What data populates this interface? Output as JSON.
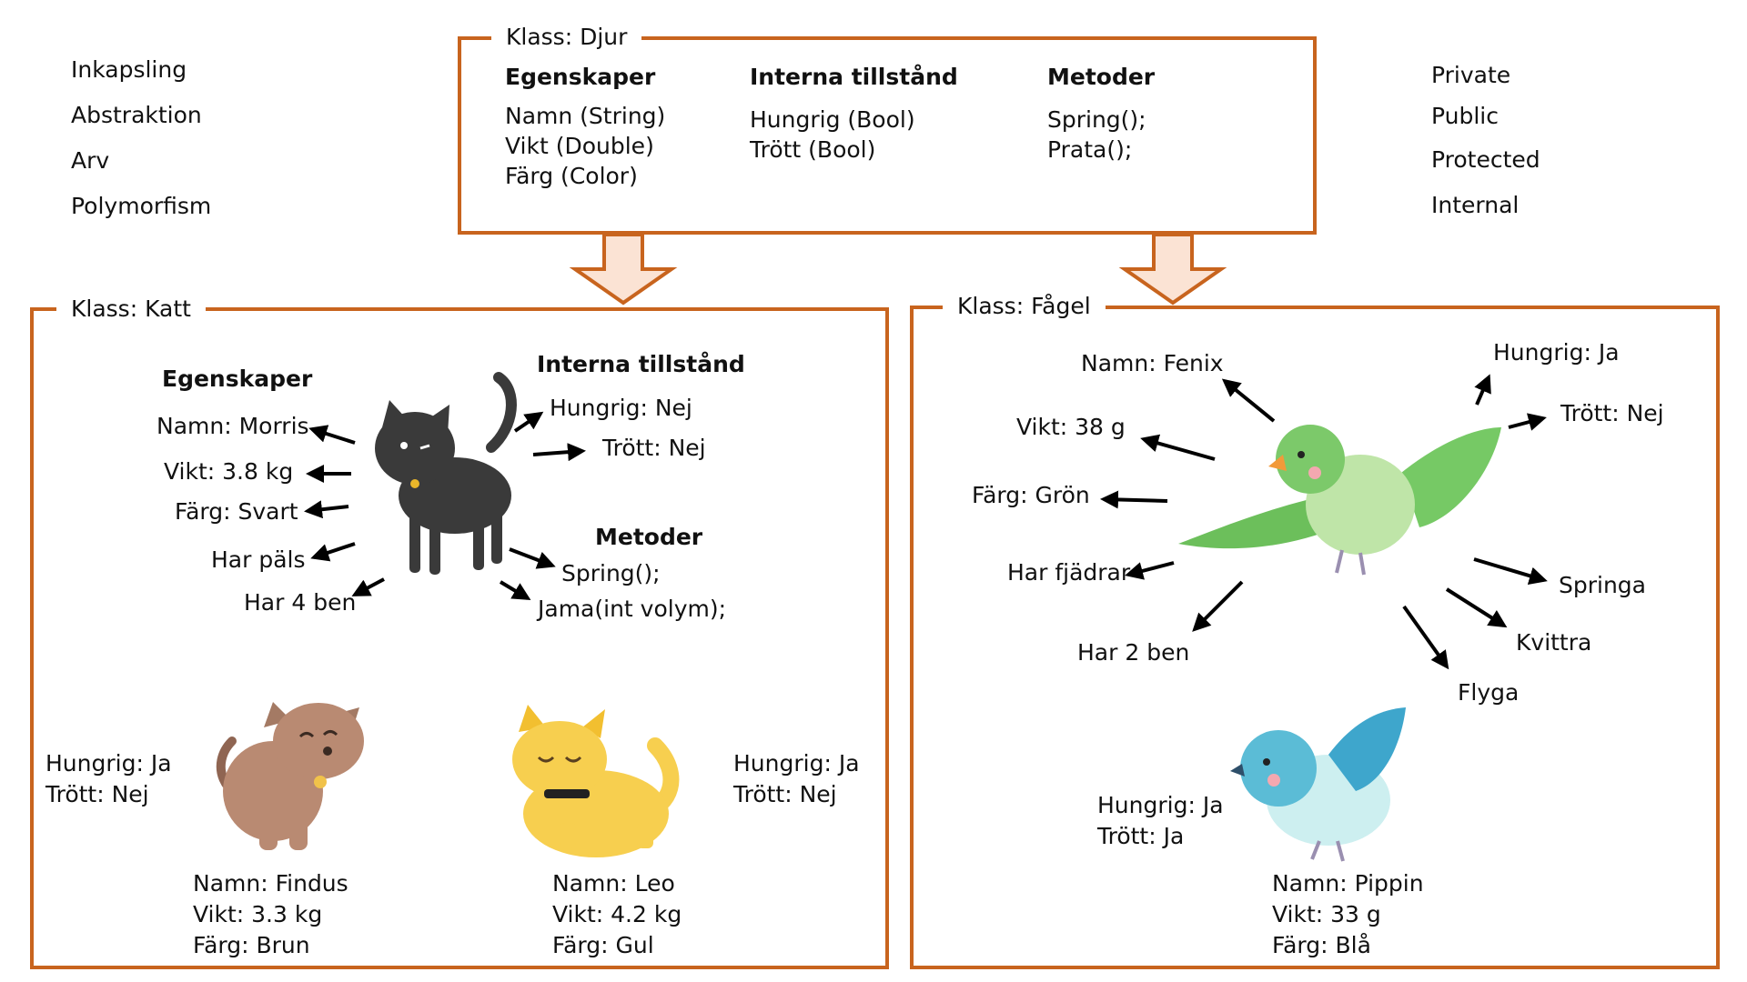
{
  "concepts": [
    "Inkapsling",
    "Abstraktion",
    "Arv",
    "Polymorfism"
  ],
  "access_modifiers": [
    "Private",
    "Public",
    "Protected",
    "Internal"
  ],
  "base_class": {
    "label": "Klass: Djur",
    "properties_heading": "Egenskaper",
    "properties": [
      "Namn (String)",
      "Vikt (Double)",
      "Färg (Color)"
    ],
    "state_heading": "Interna tillstånd",
    "states": [
      "Hungrig (Bool)",
      "Trött (Bool)"
    ],
    "methods_heading": "Metoder",
    "methods": [
      "Spring();",
      "Prata();"
    ]
  },
  "cat_class": {
    "label": "Klass: Katt",
    "properties_heading": "Egenskaper",
    "properties": [
      "Namn: Morris",
      "Vikt: 3.8 kg",
      "Färg: Svart",
      "Har päls",
      "Har 4 ben"
    ],
    "state_heading": "Interna tillstånd",
    "states": [
      "Hungrig: Nej",
      "Trött: Nej"
    ],
    "methods_heading": "Metoder",
    "methods": [
      "Spring();",
      "Jama(int volym);"
    ],
    "instances": [
      {
        "state": "Hungrig: Ja\nTrött: Nej",
        "info": "Namn: Findus\nVikt: 3.3 kg\nFärg: Brun"
      },
      {
        "state": "Hungrig: Ja\nTrött: Nej",
        "info": "Namn: Leo\nVikt: 4.2 kg\nFärg: Gul"
      }
    ]
  },
  "bird_class": {
    "label": "Klass: Fågel",
    "labels": [
      "Namn: Fenix",
      "Vikt: 38 g",
      "Färg: Grön",
      "Har fjädrar",
      "Har 2 ben",
      "Hungrig: Ja",
      "Trött: Nej",
      "Springa",
      "Kvittra",
      "Flyga"
    ],
    "instance": {
      "state": "Hungrig: Ja\nTrött: Ja",
      "info": "Namn: Pippin\nVikt: 33 g\nFärg: Blå"
    }
  },
  "colors": {
    "frame": "#c8641e",
    "arrow_fill": "#fbe3d4",
    "black_cat": "#3a3a3a",
    "brown_cat": "#b98a72",
    "yellow_cat": "#f7cf4f",
    "green_bird": "#7cc96a",
    "blue_bird": "#5bbcd6"
  },
  "icons": [
    "black-cat-icon",
    "brown-cat-icon",
    "yellow-cat-icon",
    "green-bird-icon",
    "blue-bird-icon"
  ]
}
